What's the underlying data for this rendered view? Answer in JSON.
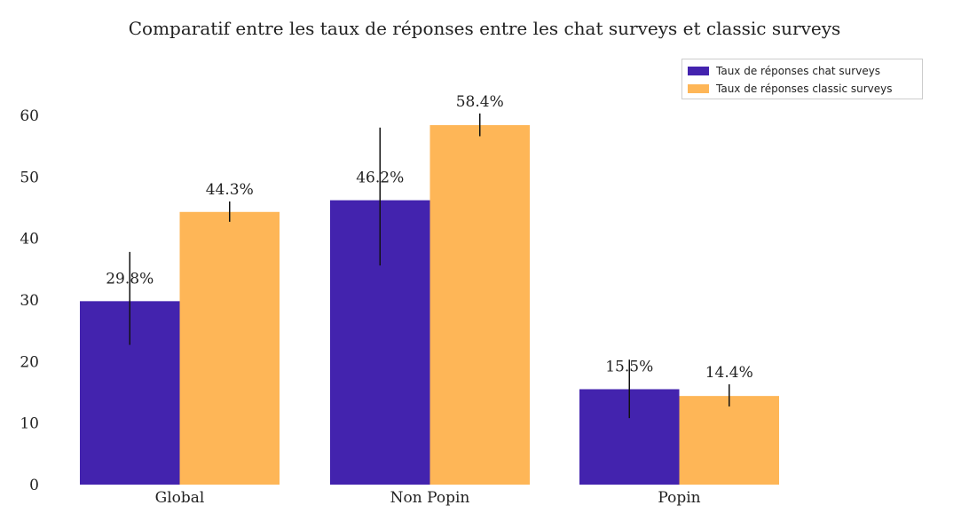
{
  "chart_data": {
    "type": "bar",
    "title": "Comparatif entre les taux de réponses entre les chat surveys et classic surveys",
    "xlabel": "",
    "ylabel": "",
    "categories": [
      "Global",
      "Non Popin",
      "Popin"
    ],
    "ylim": [
      0,
      65
    ],
    "yticks": [
      0,
      10,
      20,
      30,
      40,
      50,
      60
    ],
    "grid": false,
    "legend_position": "top-right",
    "series": [
      {
        "name": "Taux de réponses chat surveys",
        "color": "#4323ae",
        "values": [
          29.8,
          46.2,
          15.5
        ],
        "labels": [
          "29.8%",
          "46.2%",
          "15.5%"
        ],
        "error_low": [
          22.7,
          35.6,
          10.8
        ],
        "error_high": [
          37.8,
          58.0,
          20.3
        ]
      },
      {
        "name": "Taux de réponses classic surveys",
        "color": "#feb657",
        "values": [
          44.3,
          58.4,
          14.4
        ],
        "labels": [
          "44.3%",
          "58.4%",
          "14.4%"
        ],
        "error_low": [
          42.7,
          56.6,
          12.7
        ],
        "error_high": [
          46.0,
          60.3,
          16.3
        ]
      }
    ]
  }
}
